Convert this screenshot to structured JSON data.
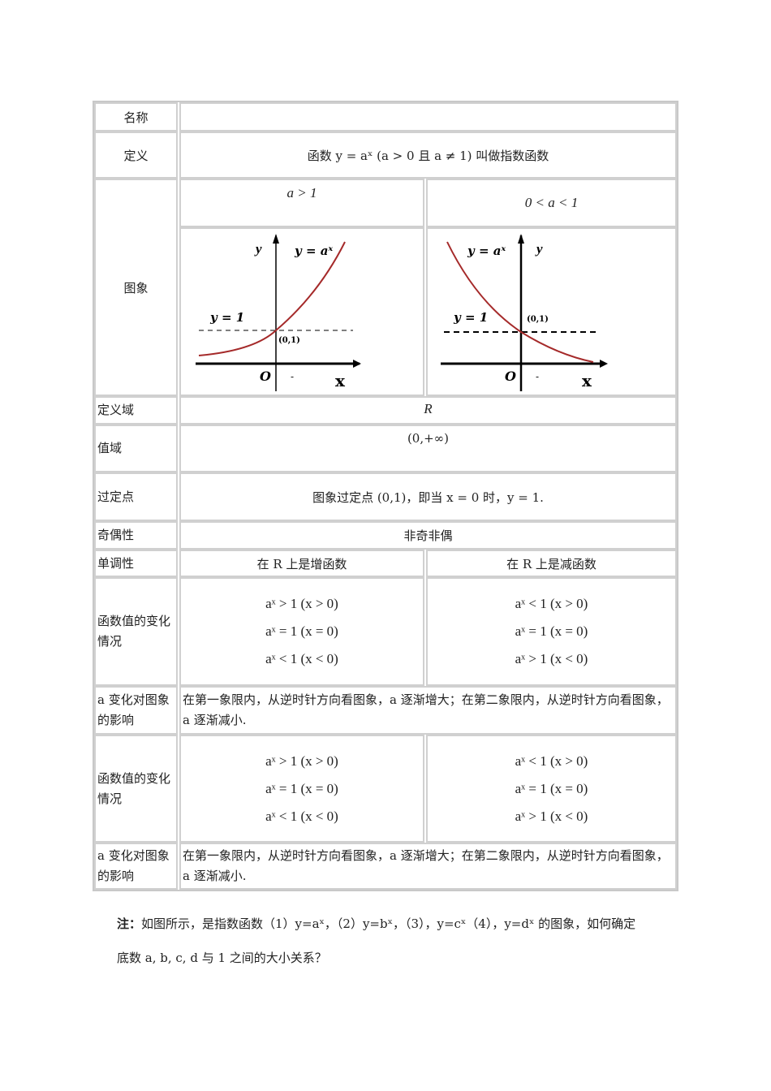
{
  "rows": {
    "name": {
      "label": "名称",
      "value": ""
    },
    "definition": {
      "label": "定义",
      "value": "函数 y = aˣ (a > 0 且 a ≠ 1) 叫做指数函数"
    },
    "graph": {
      "label": "图象",
      "col1": "a > 1",
      "col2": "0 < a < 1",
      "left_graph": {
        "curve_label": "y = aˣ",
        "y_axis": "y",
        "x_axis": "x",
        "origin": "O",
        "asymptote_label": "y = 1",
        "point_label": "(0,1)",
        "tick": "-",
        "curve_color": "#a52a2a"
      },
      "right_graph": {
        "curve_label": "y = aˣ",
        "y_axis": "y",
        "x_axis": "x",
        "origin": "O",
        "asymptote_label": "y = 1",
        "point_label": "(0,1)",
        "tick": "-",
        "curve_color": "#a52a2a"
      }
    },
    "domain": {
      "label": "定义域",
      "value": "R"
    },
    "range": {
      "label": "值域",
      "value": "(0,+∞)"
    },
    "fixed_point": {
      "label": "过定点",
      "value": "图象过定点 (0,1)，即当 x = 0 时，y = 1."
    },
    "parity": {
      "label": "奇偶性",
      "value": "非奇非偶"
    },
    "monotonicity": {
      "label": "单调性",
      "col1": "在 R 上是增函数",
      "col2": "在 R 上是减函数"
    },
    "values1": {
      "label": "函数值的变化情况",
      "col1": [
        "aˣ > 1  (x > 0)",
        "aˣ = 1  (x = 0)",
        "aˣ < 1  (x < 0)"
      ],
      "col2": [
        "aˣ < 1  (x > 0)",
        "aˣ = 1  (x = 0)",
        "aˣ > 1  (x < 0)"
      ]
    },
    "effect1": {
      "label": "a 变化对图象的影响",
      "value": "在第一象限内，从逆时针方向看图象，a 逐渐增大；在第二象限内，从逆时针方向看图象，a 逐渐减小."
    },
    "values2": {
      "label": "函数值的变化情况",
      "col1": [
        "aˣ > 1  (x > 0)",
        "aˣ = 1  (x = 0)",
        "aˣ < 1  (x < 0)"
      ],
      "col2": [
        "aˣ < 1  (x > 0)",
        "aˣ = 1  (x = 0)",
        "aˣ > 1  (x < 0)"
      ]
    },
    "effect2": {
      "label": "a 变化对图象的影响",
      "value": "在第一象限内，从逆时针方向看图象，a 逐渐增大；在第二象限内，从逆时针方向看图象，a 逐渐减小."
    }
  },
  "note": {
    "prefix": "注：",
    "line1": "如图所示，是指数函数（1）y=aˣ，（2）y=bˣ，（3），y=cˣ（4），y=dˣ 的图象，如何确定",
    "line2": "底数 a, b, c, d 与 1 之间的大小关系？"
  }
}
